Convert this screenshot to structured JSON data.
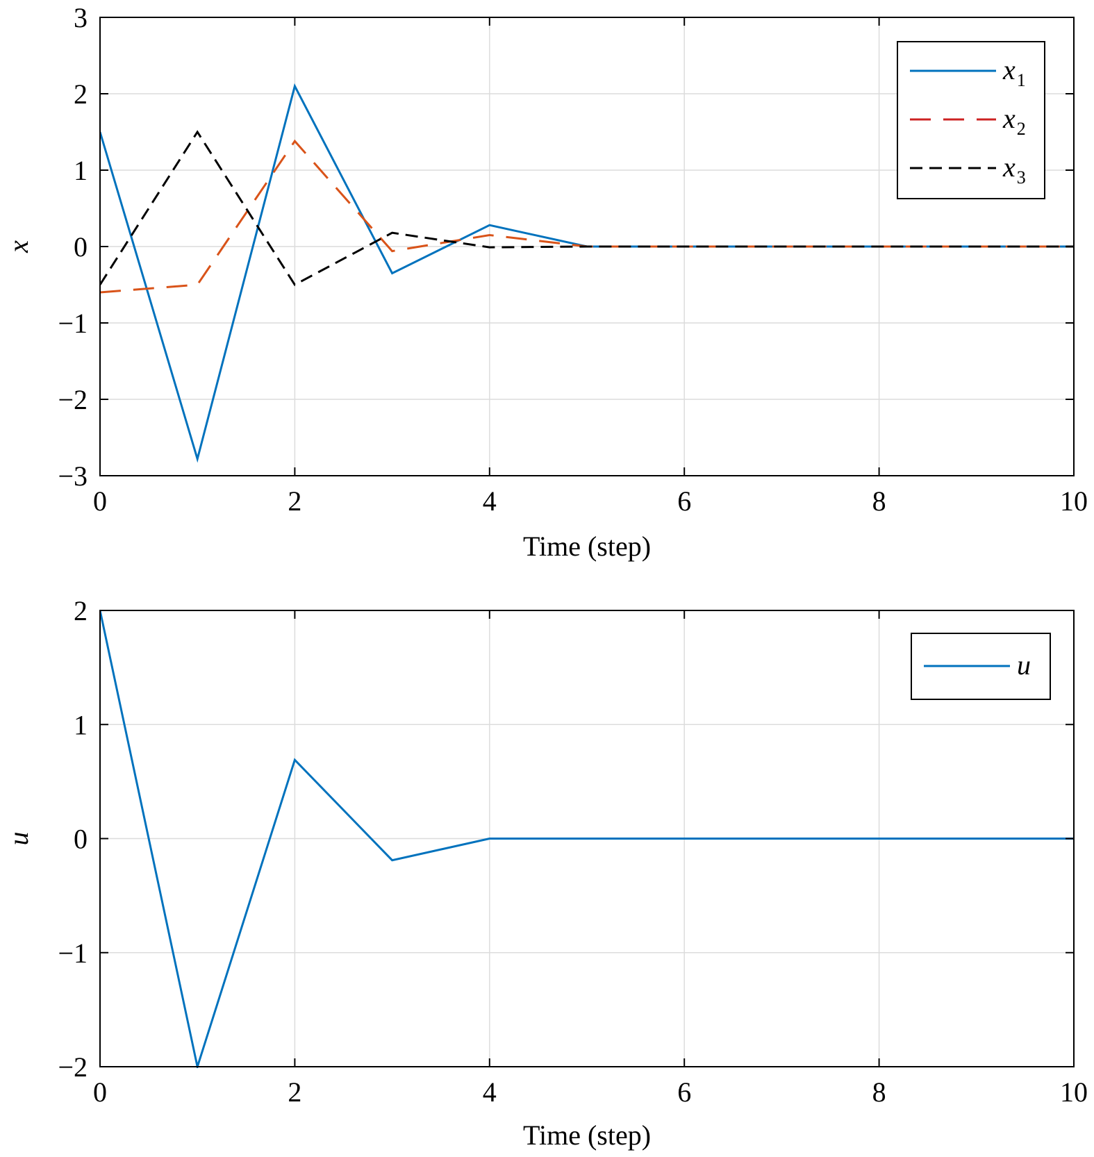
{
  "chart_data": [
    {
      "type": "line",
      "xlabel": "Time (step)",
      "ylabel": "x",
      "xlim": [
        0,
        10
      ],
      "ylim": [
        -3,
        3
      ],
      "xticks": [
        0,
        2,
        4,
        6,
        8,
        10
      ],
      "yticks": [
        -3,
        -2,
        -1,
        0,
        1,
        2,
        3
      ],
      "xtick_labels": [
        "0",
        "2",
        "4",
        "6",
        "8",
        "10"
      ],
      "ytick_labels": [
        "−3",
        "−2",
        "−1",
        "0",
        "1",
        "2",
        "3"
      ],
      "grid": true,
      "legend": "top-right",
      "x": [
        0,
        1,
        2,
        3,
        4,
        5,
        6,
        7,
        8,
        9,
        10
      ],
      "series": [
        {
          "name": "x",
          "sub": "1",
          "color": "#0072BD",
          "dash": "solid",
          "values": [
            1.5,
            -2.78,
            2.1,
            -0.35,
            0.28,
            0.0,
            0.0,
            0.0,
            0.0,
            0.0,
            0.0
          ]
        },
        {
          "name": "x",
          "sub": "2",
          "color": "#D95319",
          "legend_color": "#CC2222",
          "dash": "long-dash",
          "values": [
            -0.6,
            -0.5,
            1.38,
            -0.06,
            0.15,
            0.0,
            0.0,
            0.0,
            0.0,
            0.0,
            0.0
          ]
        },
        {
          "name": "x",
          "sub": "3",
          "color": "#000000",
          "dash": "dash",
          "values": [
            -0.5,
            1.5,
            -0.5,
            0.18,
            -0.01,
            0.0,
            0.0,
            0.0,
            0.0,
            0.0,
            0.0
          ]
        }
      ]
    },
    {
      "type": "line",
      "xlabel": "Time (step)",
      "ylabel": "u",
      "xlim": [
        0,
        10
      ],
      "ylim": [
        -2,
        2
      ],
      "xticks": [
        0,
        2,
        4,
        6,
        8,
        10
      ],
      "yticks": [
        -2,
        -1,
        0,
        1,
        2
      ],
      "xtick_labels": [
        "0",
        "2",
        "4",
        "6",
        "8",
        "10"
      ],
      "ytick_labels": [
        "−2",
        "−1",
        "0",
        "1",
        "2"
      ],
      "grid": true,
      "legend": "top-right",
      "x": [
        0,
        1,
        2,
        3,
        4,
        5,
        6,
        7,
        8,
        9,
        10
      ],
      "series": [
        {
          "name": "u",
          "sub": "",
          "color": "#0072BD",
          "dash": "solid",
          "values": [
            2.0,
            -2.0,
            0.69,
            -0.19,
            0.0,
            0.0,
            0.0,
            0.0,
            0.0,
            0.0,
            0.0
          ]
        }
      ]
    }
  ]
}
